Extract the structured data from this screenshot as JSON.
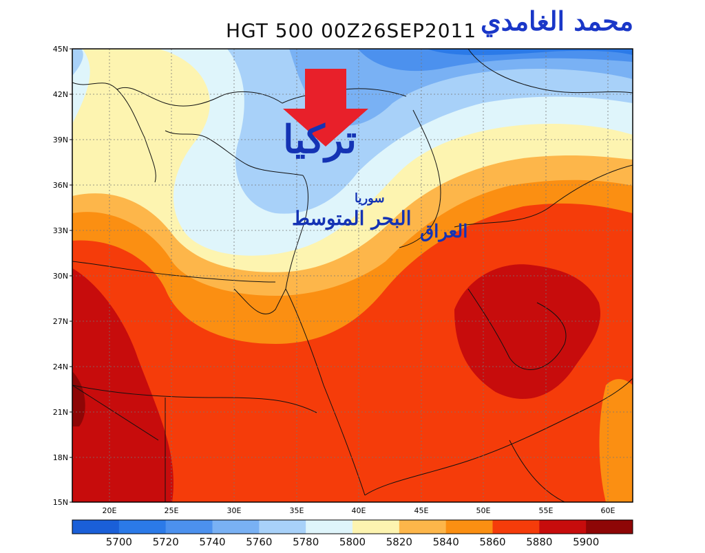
{
  "title": "HGT 500 00Z26SEP2011",
  "author": "محمد الغامدي",
  "labels": {
    "turkey": "تركيا",
    "mediterranean": "البحر المتوسط",
    "syria": "سوريا",
    "iraq": "العراق"
  },
  "axes": {
    "lat_ticks": [
      "45N",
      "42N",
      "39N",
      "36N",
      "33N",
      "30N",
      "27N",
      "24N",
      "21N",
      "18N",
      "15N"
    ],
    "lon_ticks": [
      "20E",
      "25E",
      "30E",
      "35E",
      "40E",
      "45E",
      "50E",
      "55E",
      "60E"
    ]
  },
  "colorbar": {
    "labels": [
      "5700",
      "5720",
      "5740",
      "5760",
      "5780",
      "5800",
      "5820",
      "5840",
      "5860",
      "5880",
      "5900"
    ],
    "colors": [
      "#1a5fd8",
      "#2b7ae8",
      "#4c91ee",
      "#79b1f4",
      "#a8d1f9",
      "#dff5fb",
      "#fdf4b0",
      "#fdb64a",
      "#fb8f12",
      "#f53c0a",
      "#c70c0c",
      "#8e0606"
    ]
  },
  "arrow_color": "#e8202a"
}
